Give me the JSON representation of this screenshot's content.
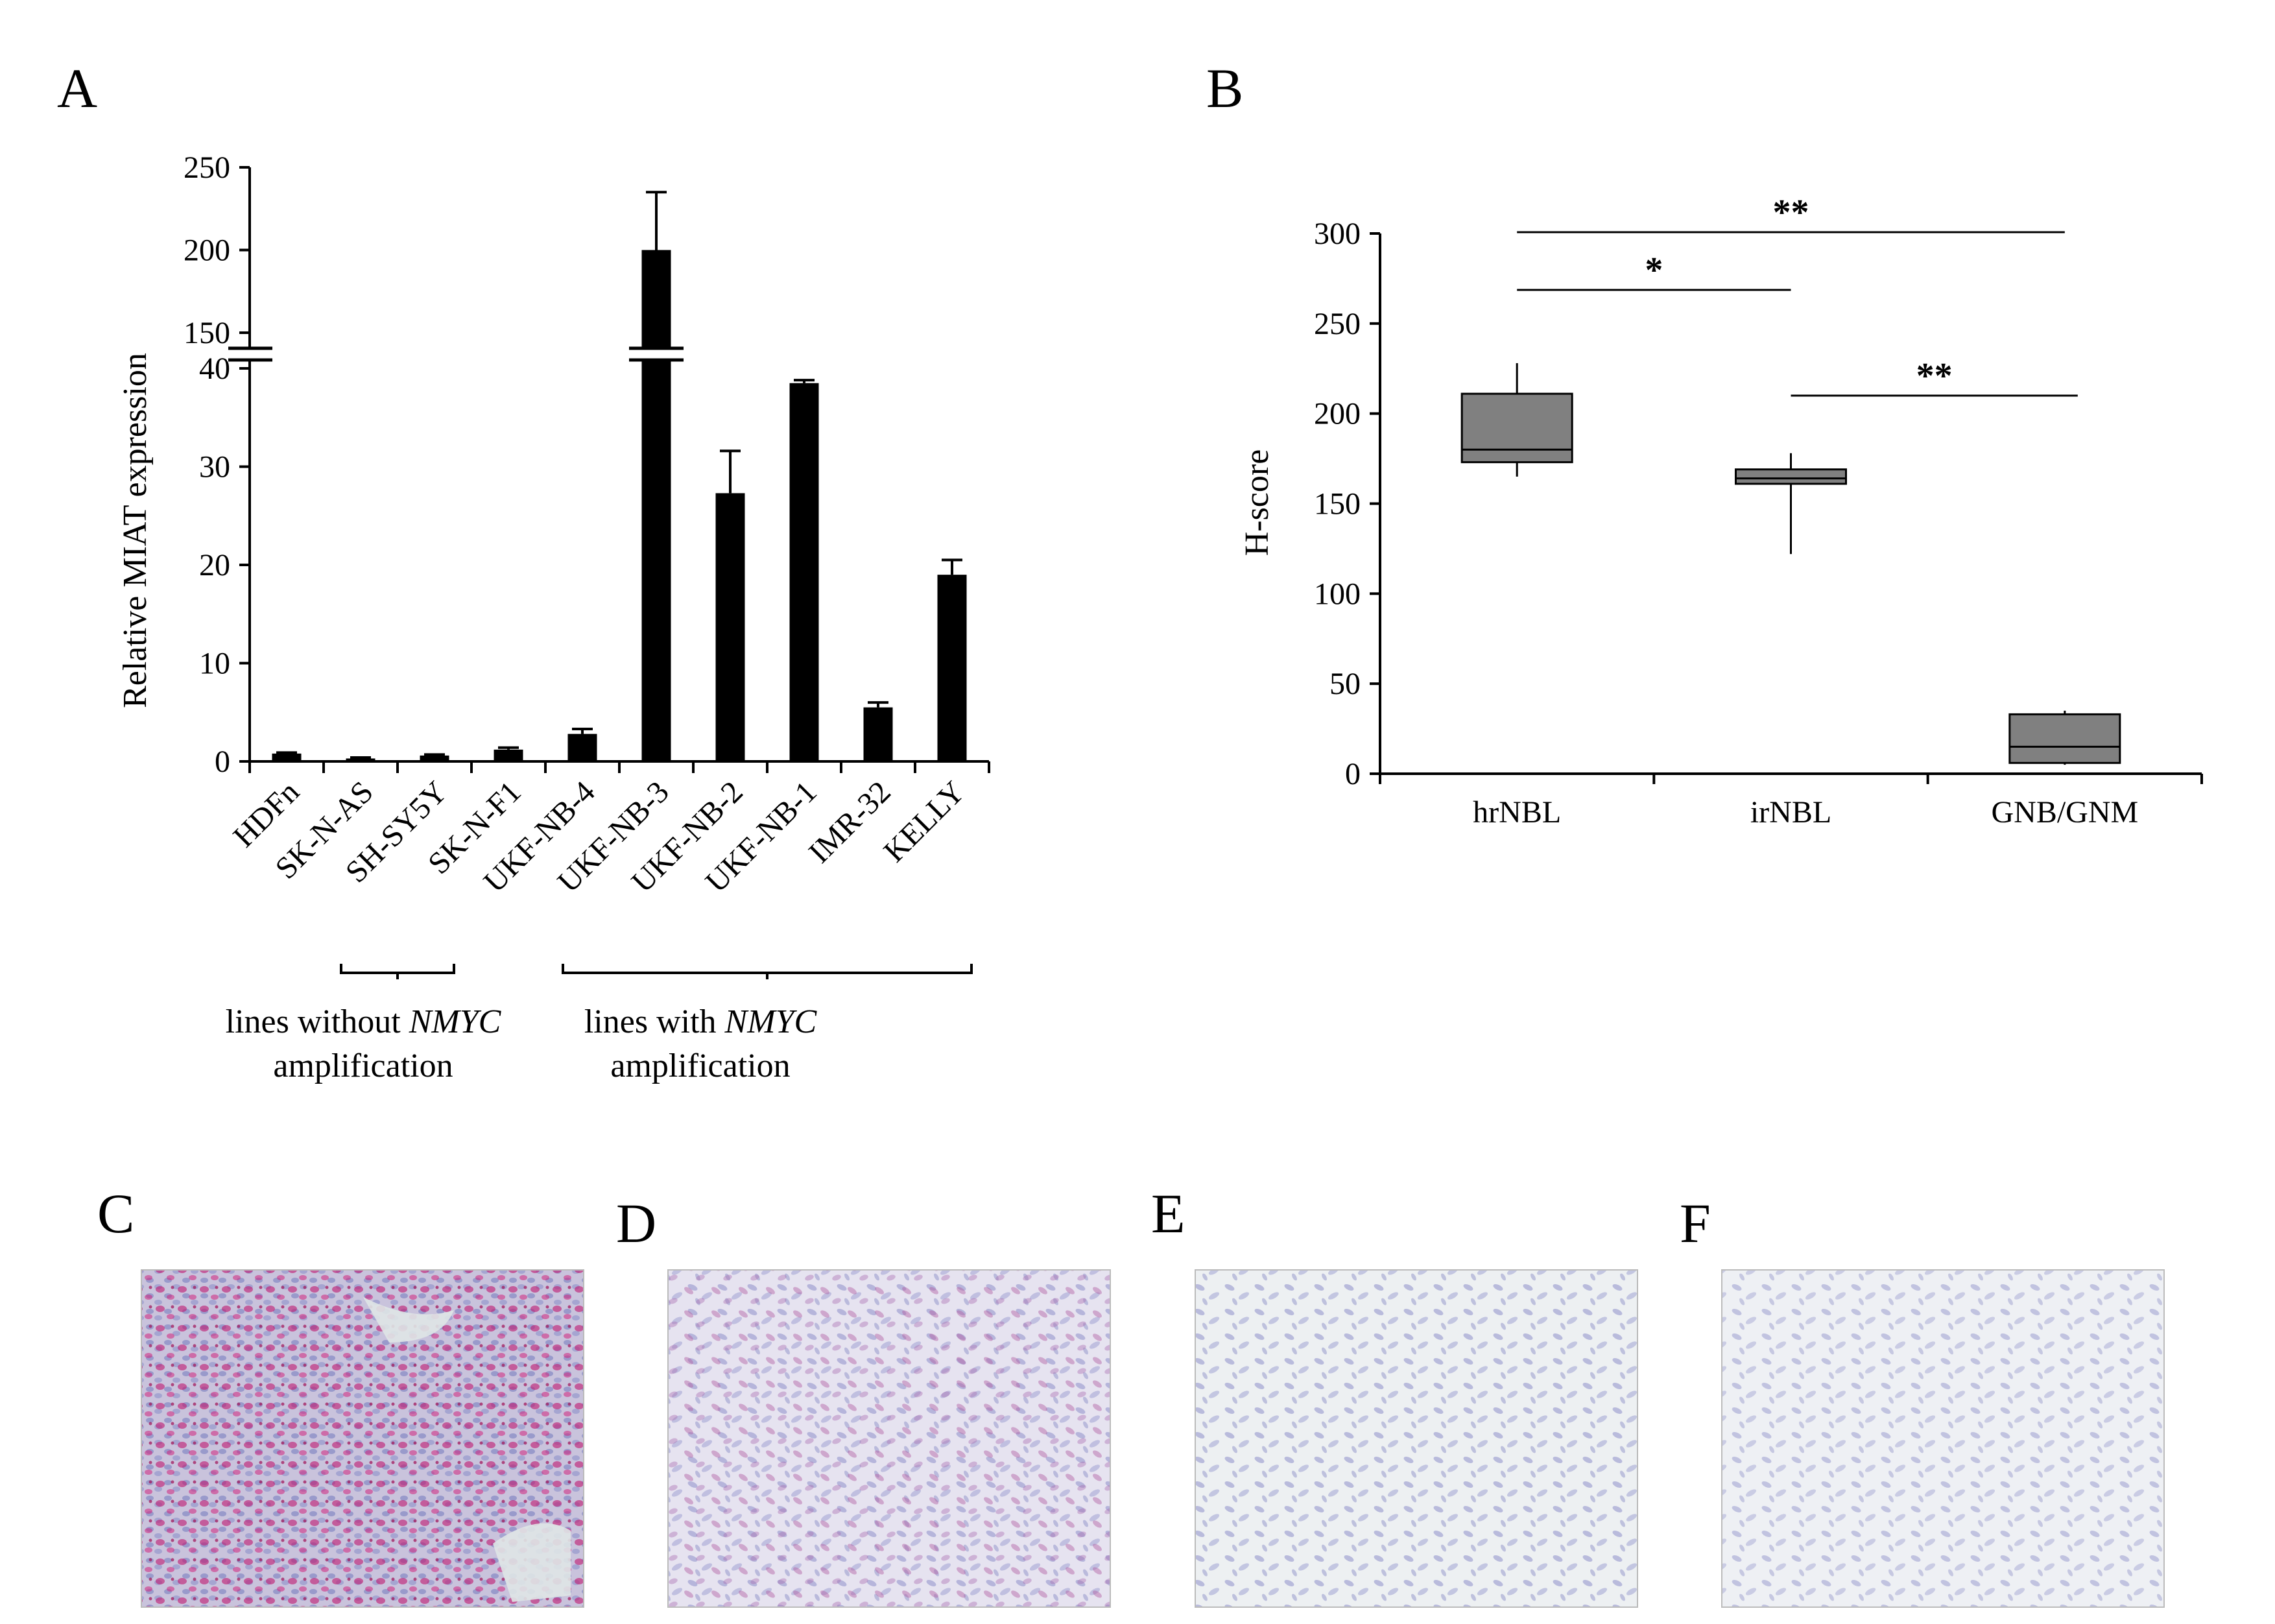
{
  "panels": {
    "A": {
      "letter": "A"
    },
    "B": {
      "letter": "B"
    },
    "C": {
      "letter": "C",
      "stain": "high"
    },
    "D": {
      "letter": "D",
      "stain": "medium"
    },
    "E": {
      "letter": "E",
      "stain": "low"
    },
    "F": {
      "letter": "F",
      "stain": "none"
    }
  },
  "chart_data": [
    {
      "type": "bar",
      "panel": "A",
      "ylabel": "Relative MIAT expression",
      "categories": [
        "HDFn",
        "SK-N-AS",
        "SH-SY5Y",
        "SK-N-F1",
        "UKF-NB-4",
        "UKF-NB-3",
        "UKF-NB-2",
        "UKF-NB-1",
        "IMR-32",
        "KELLY"
      ],
      "values": [
        0.8,
        0.3,
        0.6,
        1.2,
        2.8,
        200,
        27.3,
        38.5,
        5.5,
        19
      ],
      "errors": [
        0.1,
        0.1,
        0.1,
        0.2,
        0.5,
        35,
        4.3,
        0.3,
        0.5,
        1.5
      ],
      "bar_color": "#000000",
      "broken_axis": {
        "lower_ylim": [
          0,
          40
        ],
        "lower_ticks": [
          "0",
          "10",
          "20",
          "30",
          "40"
        ],
        "upper_ylim": [
          150,
          250
        ],
        "upper_ticks": [
          "150",
          "200",
          "250"
        ]
      },
      "groups": [
        {
          "prefix": "lines without ",
          "gene": "NMYC",
          "line2": "amplification",
          "from": "SK-N-AS",
          "to": "SH-SY5Y"
        },
        {
          "prefix": "lines with ",
          "gene": "NMYC",
          "line2": "amplification",
          "from": "UKF-NB-4",
          "to": "KELLY"
        }
      ]
    },
    {
      "type": "box",
      "panel": "B",
      "ylabel": "H-score",
      "categories": [
        "hrNBL",
        "irNBL",
        "GNB/GNM"
      ],
      "boxes": [
        {
          "min": 165,
          "q1": 173,
          "median": 180,
          "q3": 211,
          "max": 228
        },
        {
          "min": 122,
          "q1": 161,
          "median": 164,
          "q3": 169,
          "max": 178
        },
        {
          "min": 5,
          "q1": 6,
          "median": 15,
          "q3": 33,
          "max": 35
        }
      ],
      "ylim": [
        0,
        300
      ],
      "yticks": [
        "0",
        "50",
        "100",
        "150",
        "200",
        "250",
        "300"
      ],
      "box_color": "#808080",
      "significance": [
        {
          "from": "hrNBL",
          "to": "GNB/GNM",
          "label": "**"
        },
        {
          "from": "hrNBL",
          "to": "irNBL",
          "label": "*"
        },
        {
          "from": "irNBL",
          "to": "GNB/GNM",
          "label": "**"
        }
      ]
    }
  ]
}
